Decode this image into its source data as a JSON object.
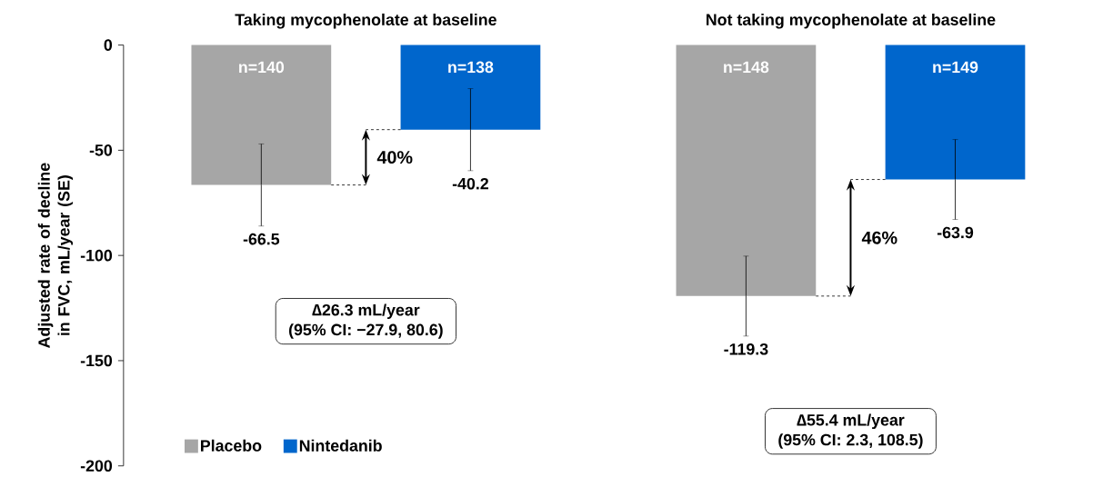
{
  "chart_data": {
    "type": "bar",
    "categories": [
      "Taking mycophenolate at baseline",
      "Not taking mycophenolate at baseline"
    ],
    "ylabel": "Adjusted rate of decline in FVC, mL/year (SE)",
    "series": [
      {
        "name": "Placebo",
        "color": "#a6a6a6",
        "values": [
          -66.5,
          -119.3
        ],
        "errors": [
          19.5,
          19
        ]
      },
      {
        "name": "Nintedanib",
        "color": "#0066cc",
        "values": [
          -40.2,
          -63.9
        ],
        "errors": [
          19.5,
          19
        ]
      }
    ],
    "annotations": [
      "n=140",
      "n=138",
      "n=148",
      "n=149",
      "40%",
      "46%",
      "∆26.3 mL/year",
      "(95% CI: −27.9, 80.6)",
      "∆55.4 mL/year",
      "(95% CI: 2.3, 108.5)"
    ],
    "ylim": [
      -200,
      0
    ],
    "yticks": [
      0,
      -50,
      -100,
      -150,
      -200
    ],
    "data_labels": true,
    "legend": "bottom left"
  }
}
